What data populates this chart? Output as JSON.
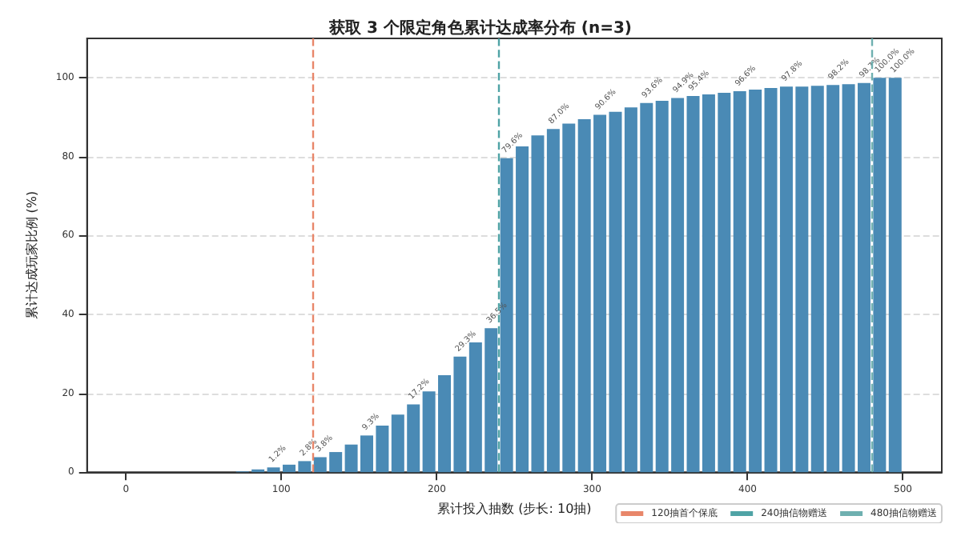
{
  "chart_data": {
    "type": "bar",
    "title": "获取 3 个限定角色累计达成率分布 (n=3)",
    "xlabel": "累计投入抽数 (步长: 10抽)",
    "ylabel": "累计达成玩家比例 (%)",
    "x": [
      5,
      15,
      25,
      35,
      45,
      55,
      65,
      75,
      85,
      95,
      105,
      115,
      125,
      135,
      145,
      155,
      165,
      175,
      185,
      195,
      205,
      215,
      225,
      235,
      245,
      255,
      265,
      275,
      285,
      295,
      305,
      315,
      325,
      335,
      345,
      355,
      365,
      375,
      385,
      395,
      405,
      415,
      425,
      435,
      445,
      455,
      465,
      475,
      485,
      495
    ],
    "values": [
      0,
      0,
      0,
      0,
      0,
      0,
      0,
      0.2,
      0.7,
      1.2,
      1.9,
      2.8,
      3.8,
      5.1,
      7.0,
      9.3,
      11.8,
      14.6,
      17.2,
      20.5,
      24.6,
      29.3,
      32.9,
      36.5,
      79.6,
      82.6,
      85.4,
      87.0,
      88.4,
      89.5,
      90.6,
      91.4,
      92.5,
      93.6,
      94.2,
      94.9,
      95.4,
      95.8,
      96.2,
      96.6,
      97.0,
      97.4,
      97.8,
      97.8,
      98.0,
      98.2,
      98.4,
      98.7,
      100.0,
      100.0
    ],
    "value_labels": [
      null,
      null,
      null,
      null,
      null,
      null,
      null,
      null,
      null,
      "1.2%",
      null,
      "2.8%",
      "3.8%",
      null,
      null,
      "9.3%",
      null,
      null,
      "17.2%",
      null,
      null,
      "29.3%",
      null,
      "36.5%",
      "79.6%",
      null,
      null,
      "87.0%",
      null,
      null,
      "90.6%",
      null,
      null,
      "93.6%",
      null,
      "94.9%",
      "95.4%",
      null,
      null,
      "96.6%",
      null,
      null,
      "97.8%",
      null,
      null,
      "98.2%",
      null,
      "98.7%",
      "100.0%",
      "100.0%"
    ],
    "color": "#4a8ab5",
    "xlim": [
      -25,
      525
    ],
    "xticks": [
      0,
      100,
      200,
      300,
      400,
      500
    ],
    "ylim": [
      0,
      110
    ],
    "yticks": [
      0,
      20,
      40,
      60,
      80,
      100
    ],
    "grid": "y",
    "legend": "bottom right",
    "ref_lines": [
      {
        "axis": "x",
        "value": 120,
        "label": "120抽首个保底",
        "color": "#e8866a",
        "line_style": "dashed"
      },
      {
        "axis": "x",
        "value": 240,
        "label": "240抽信物赠送",
        "color": "#4fa3a5",
        "line_style": "dashed"
      },
      {
        "axis": "x",
        "value": 480,
        "label": "480抽信物赠送",
        "color": "#6fb0b0",
        "line_style": "dashed"
      }
    ]
  }
}
